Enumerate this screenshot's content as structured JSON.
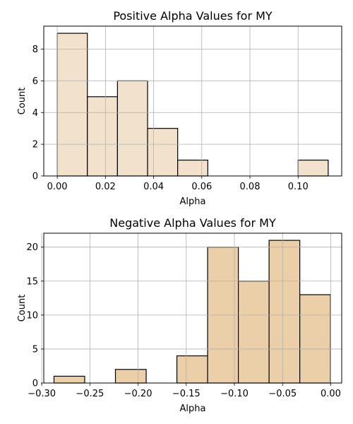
{
  "chart_data": [
    {
      "type": "bar",
      "title": "Positive Alpha Values for MY",
      "xlabel": "Alpha",
      "ylabel": "Count",
      "bin_edges": [
        0.0,
        0.0125,
        0.025,
        0.0375,
        0.05,
        0.0625,
        0.075,
        0.0875,
        0.1,
        0.1125
      ],
      "values": [
        9,
        5,
        6,
        3,
        1,
        0,
        0,
        0,
        1
      ],
      "xlim": [
        -0.0056,
        0.1181
      ],
      "ylim": [
        0,
        9.45
      ],
      "xticks": [
        0.0,
        0.02,
        0.04,
        0.06,
        0.08,
        0.1
      ],
      "xtick_labels": [
        "0.00",
        "0.02",
        "0.04",
        "0.06",
        "0.08",
        "0.10"
      ],
      "yticks": [
        0,
        2,
        4,
        6,
        8
      ],
      "ytick_labels": [
        "0",
        "2",
        "4",
        "6",
        "8"
      ],
      "grid": true,
      "bar_color": "#f2e2cc",
      "edge_color": "#000000"
    },
    {
      "type": "bar",
      "title": "Negative Alpha Values for MY",
      "xlabel": "Alpha",
      "ylabel": "Count",
      "bin_edges": [
        -0.2873,
        -0.2554,
        -0.2235,
        -0.1916,
        -0.1597,
        -0.1278,
        -0.0959,
        -0.064,
        -0.0321,
        -0.0002
      ],
      "values": [
        1,
        0,
        2,
        0,
        4,
        20,
        15,
        21,
        13
      ],
      "xlim": [
        -0.2979,
        0.0114
      ],
      "ylim": [
        0,
        22.05
      ],
      "xticks": [
        -0.3,
        -0.25,
        -0.2,
        -0.15,
        -0.1,
        -0.05,
        0.0
      ],
      "xtick_labels": [
        "−0.30",
        "−0.25",
        "−0.20",
        "−0.15",
        "−0.10",
        "−0.05",
        "0.00"
      ],
      "yticks": [
        0,
        5,
        10,
        15,
        20
      ],
      "ytick_labels": [
        "0",
        "5",
        "10",
        "15",
        "20"
      ],
      "grid": true,
      "bar_color": "#ebcfa8",
      "edge_color": "#000000"
    }
  ]
}
